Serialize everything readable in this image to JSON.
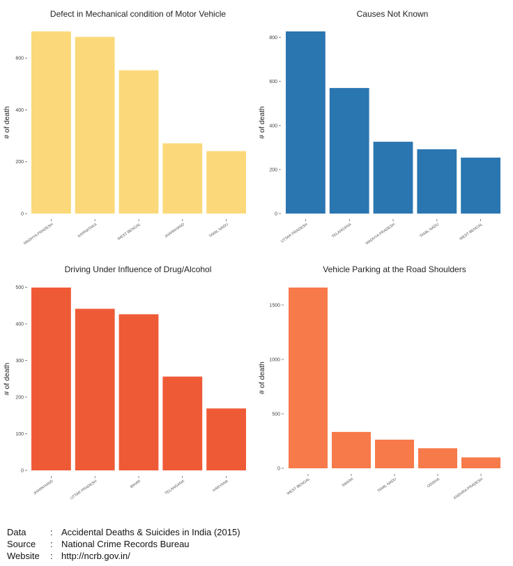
{
  "chart_data": [
    {
      "type": "bar",
      "title": "Defect in Mechanical condition of Motor Vehicle",
      "ylabel": "# of death",
      "categories": [
        "MADHYA PRADESH",
        "KARNATAKA",
        "WEST BENGAL",
        "JHARKHAND",
        "TAMIL NADU"
      ],
      "values": [
        703,
        682,
        553,
        271,
        241
      ],
      "ylim": [
        0,
        703
      ],
      "yticks": [
        0,
        200,
        400,
        600
      ],
      "color": "#FBD97A"
    },
    {
      "type": "bar",
      "title": "Causes Not Known",
      "ylabel": "# of death",
      "categories": [
        "UTTAR PRADESH",
        "TELANGANA",
        "MADHYA PRADESH",
        "TAMIL NADU",
        "WEST BENGAL"
      ],
      "values": [
        827,
        570,
        326,
        292,
        254
      ],
      "ylim": [
        0,
        827
      ],
      "yticks": [
        0,
        200,
        400,
        600,
        800
      ],
      "color": "#2A76B1"
    },
    {
      "type": "bar",
      "title": "Driving Under Influence of Drug/Alcohol",
      "ylabel": "# of death",
      "categories": [
        "JHARKHAND",
        "UTTAR PRADESH",
        "BIHAR",
        "TELANGANA",
        "HARYANA"
      ],
      "values": [
        499,
        441,
        426,
        256,
        169
      ],
      "ylim": [
        0,
        499
      ],
      "yticks": [
        0,
        100,
        200,
        300,
        400,
        500
      ],
      "color": "#EF5A36"
    },
    {
      "type": "bar",
      "title": "Vehicle Parking at the Road Shoulders",
      "ylabel": "# of death",
      "categories": [
        "WEST BENGAL",
        "SIKKIM",
        "TAMIL NADU",
        "ODISHA",
        "ANDHRA PRADESH"
      ],
      "values": [
        1660,
        334,
        263,
        184,
        100
      ],
      "ylim": [
        0,
        1660
      ],
      "yticks": [
        0,
        500,
        1000,
        1500
      ],
      "color": "#F77A4A"
    }
  ],
  "footer": {
    "data_key": "Data",
    "data_value": "Accidental Deaths & Suicides in India (2015)",
    "source_key": "Source",
    "source_value": "National Crime Records Bureau",
    "website_key": "Website",
    "website_value": "http://ncrb.gov.in/",
    "separator": ":"
  }
}
